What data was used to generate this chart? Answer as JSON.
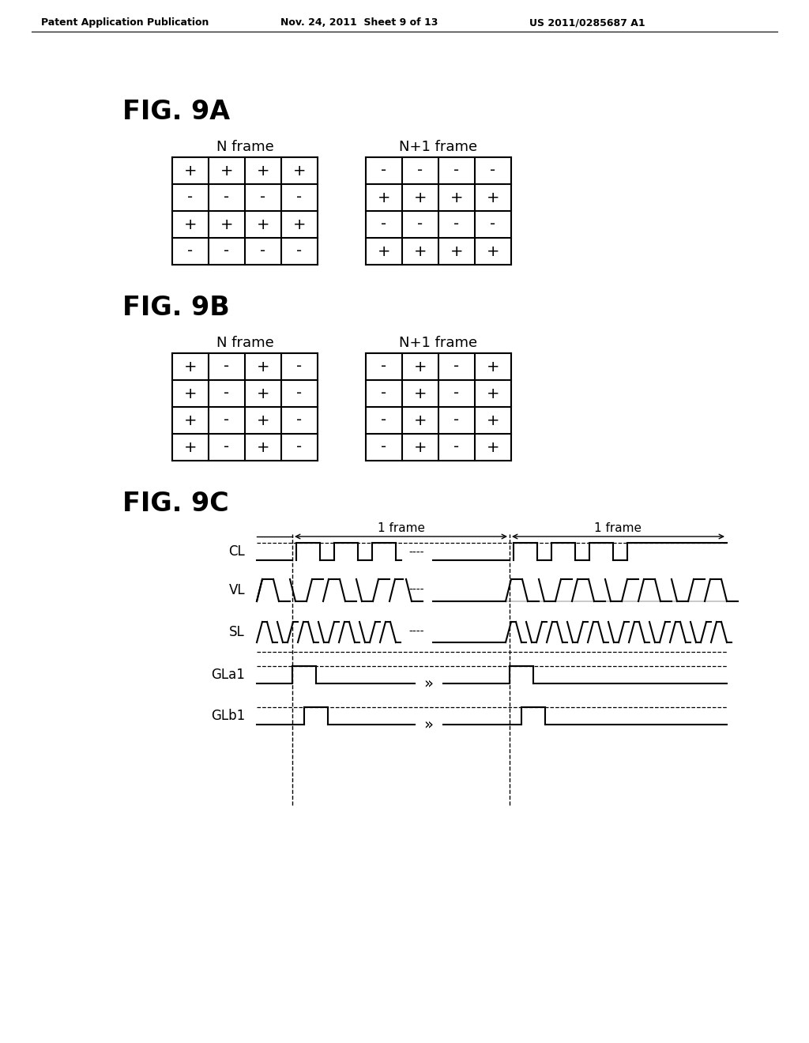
{
  "header_left": "Patent Application Publication",
  "header_mid": "Nov. 24, 2011  Sheet 9 of 13",
  "header_right": "US 2011/0285687 A1",
  "fig9a_label": "FIG. 9A",
  "fig9b_label": "FIG. 9B",
  "fig9c_label": "FIG. 9C",
  "n_frame_label": "N frame",
  "n1_frame_label": "N+1 frame",
  "grid9a_left": [
    [
      "+",
      "+",
      "+",
      "+"
    ],
    [
      "-",
      "-",
      "-",
      "-"
    ],
    [
      "+",
      "+",
      "+",
      "+"
    ],
    [
      "-",
      "-",
      "-",
      "-"
    ]
  ],
  "grid9a_right": [
    [
      "-",
      "-",
      "-",
      "-"
    ],
    [
      "+",
      "+",
      "+",
      "+"
    ],
    [
      "-",
      "-",
      "-",
      "-"
    ],
    [
      "+",
      "+",
      "+",
      "+"
    ]
  ],
  "grid9b_left": [
    [
      "+",
      "-",
      "+",
      "-"
    ],
    [
      "+",
      "-",
      "+",
      "-"
    ],
    [
      "+",
      "-",
      "+",
      "-"
    ],
    [
      "+",
      "-",
      "+",
      "-"
    ]
  ],
  "grid9b_right": [
    [
      "-",
      "+",
      "-",
      "+"
    ],
    [
      "-",
      "+",
      "-",
      "+"
    ],
    [
      "-",
      "+",
      "-",
      "+"
    ],
    [
      "-",
      "+",
      "-",
      "+"
    ]
  ],
  "signal_labels": [
    "CL",
    "VL",
    "SL",
    "GLa1",
    "GLb1"
  ],
  "frame_label": "1 frame",
  "bg_color": "#ffffff",
  "line_color": "#000000"
}
